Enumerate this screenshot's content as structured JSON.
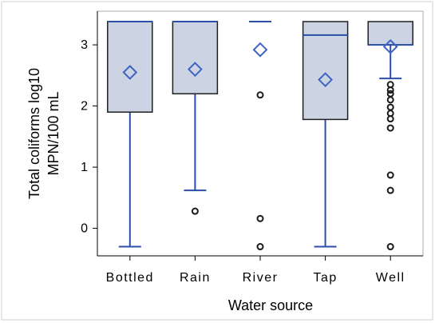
{
  "chart_data": {
    "type": "boxplot",
    "xlabel": "Water source",
    "ylabel_lines": [
      "Total coliforms log10",
      "MPN/100 mL"
    ],
    "categories": [
      "Bottled",
      "Rain",
      "River",
      "Tap",
      "Well"
    ],
    "ylim": [
      -0.45,
      3.55
    ],
    "yticks": [
      0,
      1,
      2,
      3
    ],
    "grid": false,
    "colors": {
      "box_fill": "#ccd4e4",
      "box_edge": "#1f1f1f",
      "whisker": "#2b4fa8",
      "mean_marker": "#3e64c2",
      "outlier": "#1a1a1a",
      "frame": "#d0d0d0"
    },
    "boxes": [
      {
        "category": "Bottled",
        "q1": 1.9,
        "median": 3.38,
        "q3": 3.38,
        "whisker_low": -0.3,
        "whisker_high": 3.38,
        "mean": 2.55,
        "outliers": []
      },
      {
        "category": "Rain",
        "q1": 2.2,
        "median": 3.38,
        "q3": 3.38,
        "whisker_low": 0.62,
        "whisker_high": 3.38,
        "mean": 2.6,
        "outliers": [
          0.28
        ]
      },
      {
        "category": "River",
        "q1": 3.38,
        "median": 3.38,
        "q3": 3.38,
        "whisker_low": 3.38,
        "whisker_high": 3.38,
        "mean": 2.92,
        "outliers": [
          2.18,
          0.16,
          -0.3
        ]
      },
      {
        "category": "Tap",
        "q1": 1.78,
        "median": 3.16,
        "q3": 3.38,
        "whisker_low": -0.3,
        "whisker_high": 3.38,
        "mean": 2.43,
        "outliers": []
      },
      {
        "category": "Well",
        "q1": 3.0,
        "median": 3.0,
        "q3": 3.38,
        "whisker_low": 2.45,
        "whisker_high": 3.38,
        "mean": 2.97,
        "outliers": [
          2.35,
          2.26,
          2.2,
          2.1,
          1.98,
          1.88,
          1.79,
          1.64,
          0.87,
          0.62,
          -0.3
        ]
      }
    ]
  }
}
